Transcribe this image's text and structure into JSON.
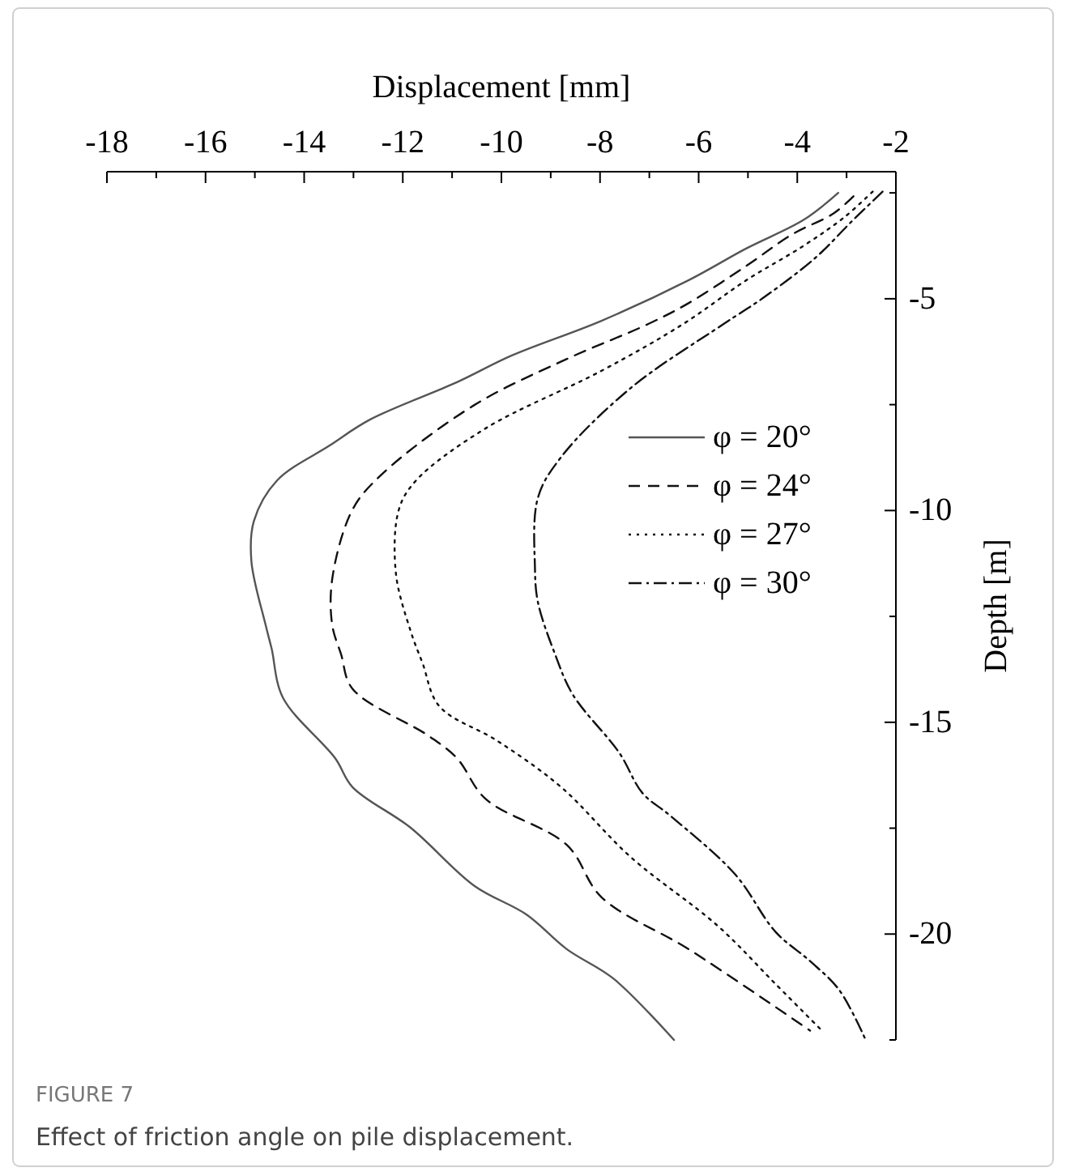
{
  "chart_data": {
    "type": "line",
    "xlabel": "Displacement [mm]",
    "ylabel": "Depth [m]",
    "xlim": [
      -18,
      -2
    ],
    "ylim": [
      -22.5,
      -2
    ],
    "xticks": [
      -18,
      {
        "value": -17,
        "label": null
      },
      -16,
      {
        "value": -15,
        "label": null
      },
      -14,
      {
        "value": -13,
        "label": null
      },
      -12,
      {
        "value": -11,
        "label": null
      },
      -10,
      {
        "value": -9,
        "label": null
      },
      -8,
      {
        "value": -7,
        "label": null
      },
      -6,
      {
        "value": -5,
        "label": null
      },
      -4,
      {
        "value": -3,
        "label": null
      },
      -2
    ],
    "yticks": [
      {
        "value": -2.5,
        "label": null
      },
      -5,
      {
        "value": -7.5,
        "label": null
      },
      -10,
      {
        "value": -12.5,
        "label": null
      },
      -15,
      {
        "value": -17.5,
        "label": null
      },
      -20,
      {
        "value": -22.5,
        "label": null
      }
    ],
    "grid": false,
    "legend": "right",
    "marker": "none",
    "annotations": [
      "FIGURE 7",
      "Effect of friction angle on pile displacement."
    ],
    "series": [
      {
        "name": "φ = 20°",
        "color": "#555555",
        "line_style": "solid",
        "x": [
          -3.17,
          -3.86,
          -5.03,
          -6.2,
          -7.97,
          -9.79,
          -10.9,
          -12.66,
          -13.49,
          -14.55,
          -15.02,
          -15.07,
          -14.78,
          -14.66,
          -14.43,
          -13.37,
          -13.02,
          -11.84,
          -10.55,
          -9.49,
          -8.67,
          -7.73,
          -6.5
        ],
        "values": [
          -2.5,
          -3.13,
          -3.81,
          -4.56,
          -5.52,
          -6.34,
          -6.97,
          -7.85,
          -8.47,
          -9.29,
          -10.25,
          -11.2,
          -12.71,
          -13.26,
          -14.42,
          -15.85,
          -16.53,
          -17.49,
          -18.86,
          -19.54,
          -20.36,
          -21.05,
          -22.5
        ]
      },
      {
        "name": "φ = 24°",
        "color": "#111111",
        "line_style": "dashed",
        "x": [
          -2.86,
          -3.27,
          -4.09,
          -5.03,
          -6.2,
          -7.03,
          -8.67,
          -10.55,
          -12.43,
          -13.02,
          -13.43,
          -13.43,
          -13.25,
          -13.02,
          -11.49,
          -10.9,
          -10.32,
          -8.67,
          -7.97,
          -6.2,
          -3.74
        ],
        "values": [
          -2.58,
          -2.99,
          -3.47,
          -4.22,
          -5.1,
          -5.6,
          -6.42,
          -7.51,
          -9.15,
          -9.98,
          -11.61,
          -12.71,
          -13.4,
          -14.21,
          -15.31,
          -15.85,
          -16.81,
          -17.9,
          -19.13,
          -20.36,
          -22.28
        ]
      },
      {
        "name": "φ = 27°",
        "color": "#111111",
        "line_style": "dotted",
        "x": [
          -2.47,
          -3.03,
          -3.86,
          -5.03,
          -6.32,
          -7.97,
          -10.32,
          -11.73,
          -12.08,
          -12.14,
          -11.84,
          -11.6,
          -11.26,
          -10.08,
          -8.79,
          -7.38,
          -5.61,
          -4.44,
          -3.5
        ],
        "values": [
          -2.47,
          -3.06,
          -3.74,
          -4.56,
          -5.6,
          -6.7,
          -8.06,
          -9.29,
          -9.98,
          -11.48,
          -12.85,
          -13.6,
          -14.62,
          -15.44,
          -16.53,
          -18.18,
          -19.81,
          -21.18,
          -22.28
        ]
      },
      {
        "name": "φ = 30°",
        "color": "#111111",
        "line_style": "dashdot",
        "x": [
          -2.27,
          -2.91,
          -3.62,
          -4.68,
          -5.5,
          -7.38,
          -8.79,
          -9.26,
          -9.32,
          -9.26,
          -8.91,
          -8.55,
          -7.61,
          -7.14,
          -6.56,
          -5.26,
          -4.44,
          -3.74,
          -3.15,
          -2.62
        ],
        "values": [
          -2.47,
          -3.19,
          -4.02,
          -4.97,
          -5.6,
          -7.11,
          -8.74,
          -9.7,
          -11.34,
          -12.16,
          -13.4,
          -14.35,
          -15.72,
          -16.67,
          -17.22,
          -18.59,
          -19.95,
          -20.64,
          -21.32,
          -22.48
        ]
      }
    ]
  }
}
